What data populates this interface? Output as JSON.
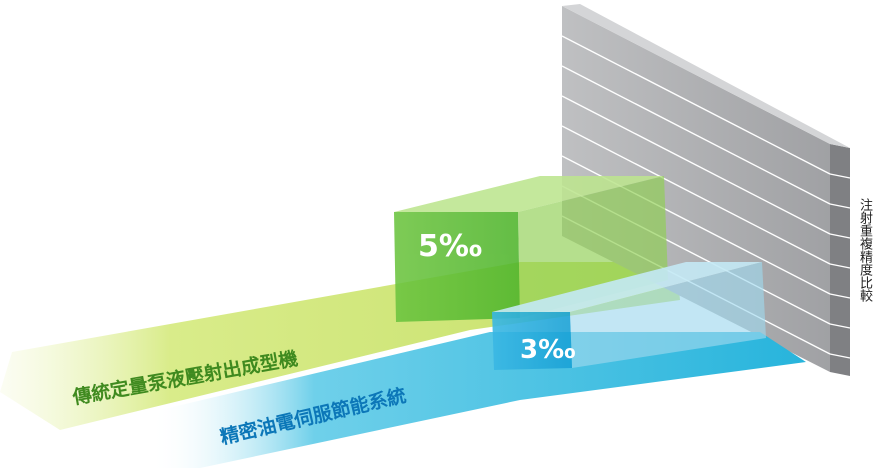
{
  "chart_data": {
    "type": "bar",
    "title": "",
    "ylabel": "注射重複精度比較",
    "unit": "‰",
    "categories": [
      "傳統定量泵液壓射出成型機",
      "精密油電伺服節能系統"
    ],
    "values": [
      5,
      3
    ],
    "value_labels": [
      "5‰",
      "3‰"
    ],
    "colors": {
      "conventional": "#8cc63f",
      "servo": "#29abe2",
      "wall": "#a7a8aa"
    }
  }
}
